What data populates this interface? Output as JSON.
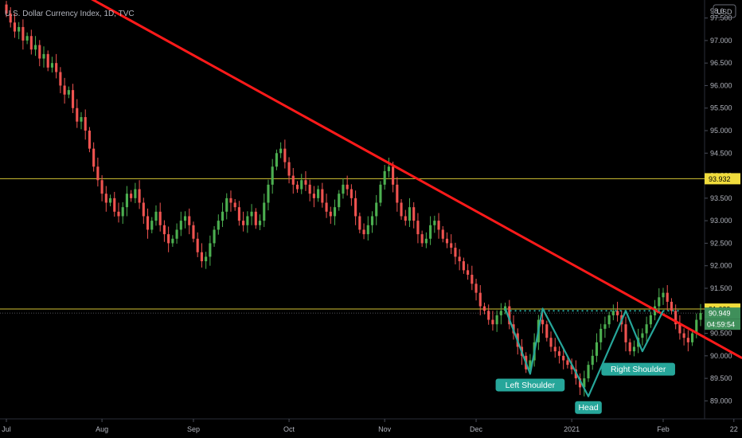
{
  "header": {
    "title": "U.S. Dollar Currency Index, 1D, TVC"
  },
  "currency_badge": "USD",
  "colors": {
    "background": "#000000",
    "up": "#4caf50",
    "down": "#ef5350",
    "trendline": "#ff1a1a",
    "level_line": "#d4c535",
    "pattern": "#26a69a",
    "axis_text": "#b2b5be"
  },
  "chart_data": {
    "type": "candlestick",
    "title": "U.S. Dollar Currency Index, 1D, TVC",
    "ylim": [
      88.6,
      97.9
    ],
    "y_ticks": [
      "97.500",
      "97.000",
      "96.500",
      "96.000",
      "95.500",
      "95.000",
      "94.500",
      "94.000",
      "93.500",
      "93.000",
      "92.500",
      "92.000",
      "91.500",
      "91.000",
      "90.500",
      "90.000",
      "89.500",
      "89.000"
    ],
    "y_top_tick_partial": "98.0",
    "x_ticks": [
      "Jul",
      "Aug",
      "Sep",
      "Oct",
      "Nov",
      "Dec",
      "2021",
      "Feb",
      "22"
    ],
    "x_tick_index": [
      0,
      23,
      45,
      68,
      91,
      113,
      136,
      158,
      175
    ],
    "grid": false,
    "horizontal_levels": [
      {
        "value": 93.932,
        "label": "93.932"
      },
      {
        "value": 91.039,
        "label": "91.039"
      }
    ],
    "price_badges": [
      {
        "value": 90.949,
        "label": "90.949"
      },
      {
        "label": "04:59:54"
      }
    ],
    "trendline": {
      "from": {
        "index": 17,
        "value": 98.1
      },
      "to": {
        "index": 177,
        "value": 89.95
      }
    },
    "neckline": {
      "from_index": 120,
      "to_index": 162,
      "value": 91.0
    },
    "pattern_points": [
      {
        "index": 120,
        "value": 91.05
      },
      {
        "index": 126,
        "value": 89.6
      },
      {
        "index": 129,
        "value": 91.05
      },
      {
        "index": 140,
        "value": 89.1
      },
      {
        "index": 149,
        "value": 91.0
      },
      {
        "index": 153,
        "value": 90.1
      },
      {
        "index": 158,
        "value": 91.0
      }
    ],
    "annotations": [
      {
        "text": "Left Shoulder",
        "index": 126,
        "value": 89.6
      },
      {
        "text": "Head",
        "index": 140,
        "value": 89.1
      },
      {
        "text": "Right Shoulder",
        "index": 152,
        "value": 89.95
      }
    ],
    "close": [
      97.6,
      97.4,
      97.2,
      97.3,
      97.0,
      97.1,
      96.8,
      96.9,
      96.6,
      96.7,
      96.4,
      96.5,
      96.3,
      96.0,
      95.8,
      95.9,
      95.5,
      95.2,
      95.3,
      95.0,
      94.6,
      94.2,
      93.9,
      93.6,
      93.4,
      93.5,
      93.2,
      93.1,
      93.3,
      93.6,
      93.5,
      93.7,
      93.4,
      93.1,
      92.8,
      93.0,
      93.2,
      92.9,
      92.7,
      92.5,
      92.6,
      92.8,
      93.0,
      93.1,
      92.9,
      92.6,
      92.3,
      92.1,
      92.2,
      92.5,
      92.8,
      93.0,
      93.2,
      93.5,
      93.4,
      93.3,
      93.0,
      92.9,
      93.1,
      93.2,
      92.9,
      93.0,
      93.4,
      93.8,
      94.2,
      94.5,
      94.6,
      94.3,
      94.0,
      93.8,
      93.7,
      93.9,
      93.8,
      93.6,
      93.5,
      93.7,
      93.4,
      93.2,
      93.1,
      93.3,
      93.6,
      93.8,
      93.7,
      93.5,
      93.1,
      92.8,
      92.7,
      92.9,
      93.1,
      93.4,
      93.8,
      94.1,
      94.2,
      93.8,
      93.4,
      93.1,
      93.0,
      93.3,
      93.0,
      92.7,
      92.5,
      92.6,
      92.9,
      93.0,
      92.8,
      92.6,
      92.5,
      92.4,
      92.2,
      92.1,
      91.9,
      91.8,
      91.6,
      91.4,
      91.1,
      91.0,
      90.8,
      90.7,
      90.9,
      91.0,
      91.1,
      90.7,
      90.5,
      90.2,
      90.0,
      89.7,
      89.9,
      90.3,
      90.8,
      90.7,
      90.4,
      90.2,
      90.1,
      90.0,
      89.9,
      89.8,
      89.7,
      89.5,
      89.3,
      89.5,
      89.8,
      90.0,
      90.3,
      90.6,
      90.7,
      90.9,
      91.0,
      90.9,
      90.7,
      90.3,
      90.1,
      90.2,
      90.4,
      90.5,
      90.7,
      90.9,
      91.1,
      91.3,
      91.4,
      91.2,
      91.0,
      90.7,
      90.5,
      90.4,
      90.3,
      90.5,
      90.8,
      90.95
    ]
  }
}
